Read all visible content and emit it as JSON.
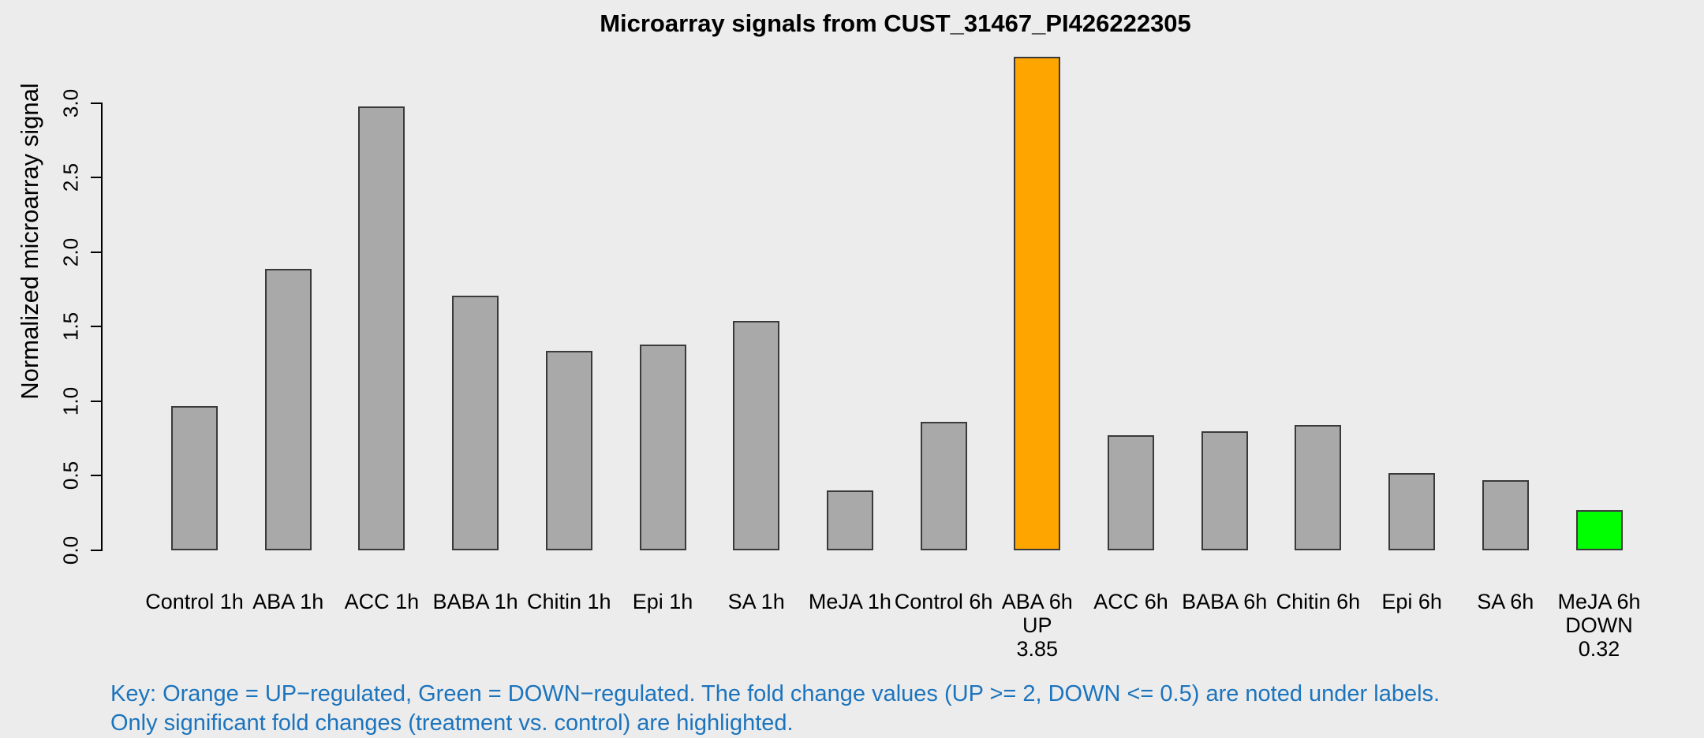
{
  "chart_data": {
    "type": "bar",
    "title": "Microarray signals from CUST_31467_PI426222305",
    "ylabel": "Normalized microarray signal",
    "xlabel": "",
    "grid": false,
    "legend_position": "none",
    "ylim": [
      0,
      3.31
    ],
    "ytick_labels": [
      "0.0",
      "0.5",
      "1.0",
      "1.5",
      "2.0",
      "2.5",
      "3.0"
    ],
    "categories": [
      "Control 1h",
      "ABA 1h",
      "ACC 1h",
      "BABA 1h",
      "Chitin 1h",
      "Epi 1h",
      "SA 1h",
      "MeJA 1h",
      "Control 6h",
      "ABA 6h",
      "ACC 6h",
      "BABA 6h",
      "Chitin 6h",
      "Epi 6h",
      "SA 6h",
      "MeJA 6h"
    ],
    "values": [
      0.97,
      1.89,
      2.98,
      1.71,
      1.34,
      1.38,
      1.54,
      0.4,
      0.86,
      3.31,
      0.77,
      0.8,
      0.84,
      0.52,
      0.47,
      0.27
    ],
    "bar_colors": [
      "#A9A9A9",
      "#A9A9A9",
      "#A9A9A9",
      "#A9A9A9",
      "#A9A9A9",
      "#A9A9A9",
      "#A9A9A9",
      "#A9A9A9",
      "#A9A9A9",
      "#FFA500",
      "#A9A9A9",
      "#A9A9A9",
      "#A9A9A9",
      "#A9A9A9",
      "#A9A9A9",
      "#00FF00"
    ],
    "bar_sublabels": [
      [],
      [],
      [],
      [],
      [],
      [],
      [],
      [],
      [],
      [
        "UP",
        "3.85"
      ],
      [],
      [],
      [],
      [],
      [],
      [
        "DOWN",
        "0.32"
      ]
    ],
    "footnote": [
      "Key: Orange = UP−regulated, Green = DOWN−regulated. The fold change values (UP >= 2, DOWN <= 0.5) are noted under labels.",
      "Only significant fold changes (treatment vs. control) are highlighted."
    ],
    "colors": {
      "background": "#ECECEC",
      "bar_default": "#A9A9A9",
      "bar_up": "#FFA500",
      "bar_down": "#00FF00",
      "bar_border": "#3A3A3A",
      "axis": "#000000",
      "key_text": "#1C74BD"
    }
  }
}
